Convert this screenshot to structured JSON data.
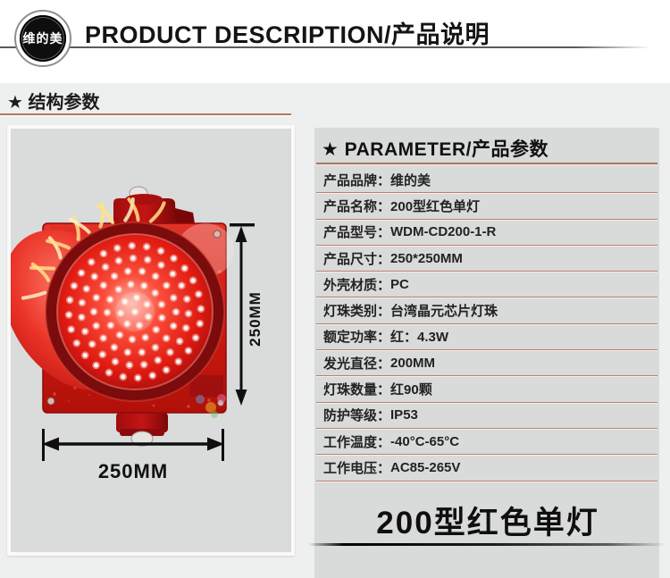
{
  "header": {
    "logo_text": "维的美",
    "title": "PRODUCT DESCRIPTION/产品说明"
  },
  "structure_section": {
    "title": "★ 结构参数"
  },
  "product_image": {
    "height_dim_label": "250MM",
    "width_dim_label": "250MM"
  },
  "parameters": {
    "title": "★ PARAMETER/产品参数",
    "separator": "：",
    "rows": [
      {
        "label": "产品品牌",
        "value": "维的美"
      },
      {
        "label": "产品名称",
        "value": "200型红色单灯"
      },
      {
        "label": "产品型号",
        "value": "WDM-CD200-1-R"
      },
      {
        "label": "产品尺寸",
        "value": "250*250MM"
      },
      {
        "label": "外壳材质",
        "value": "PC"
      },
      {
        "label": "灯珠类别",
        "value": "台湾晶元芯片灯珠"
      },
      {
        "label": "额定功率",
        "value": "红：4.3W"
      },
      {
        "label": "发光直径",
        "value": "200MM"
      },
      {
        "label": "灯珠数量",
        "value": "红90颗"
      },
      {
        "label": "防护等级",
        "value": "IP53"
      },
      {
        "label": "工作温度",
        "value": "-40°C-65°C"
      },
      {
        "label": "工作电压",
        "value": "AC85-265V"
      }
    ]
  },
  "footer": {
    "product_name": "200型红色单灯"
  },
  "colors": {
    "accent_underline": "#b5795c",
    "row_divider": "#b5826b",
    "signal_red": "#e01b12",
    "panel_bg": "#d9dada",
    "page_bg": "#eef0ef"
  }
}
